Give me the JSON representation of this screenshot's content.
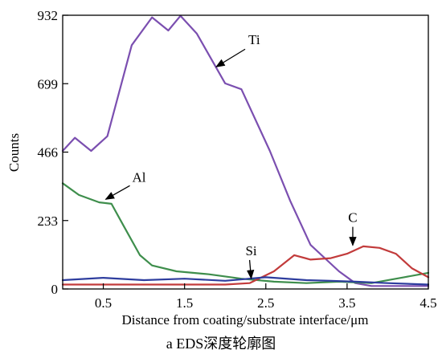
{
  "caption": "a  EDS深度轮廓图",
  "chart_data": {
    "type": "line",
    "title": "",
    "xlabel": "Distance from coating/substrate interface/μm",
    "ylabel": "Counts",
    "xlim": [
      0,
      4.5
    ],
    "ylim": [
      0,
      932
    ],
    "xticks": [
      0.5,
      1.5,
      2.5,
      3.5,
      4.5
    ],
    "xtick_labels": [
      "0.5",
      "1.5",
      "2.5",
      "3.5",
      "4.5"
    ],
    "yticks": [
      0,
      233,
      466,
      699,
      932
    ],
    "ytick_labels": [
      "0",
      "233",
      "466",
      "699",
      "932"
    ],
    "grid": false,
    "series": [
      {
        "name": "Ti",
        "color": "#7b4fb0",
        "x": [
          0,
          0.15,
          0.35,
          0.55,
          0.85,
          1.1,
          1.3,
          1.45,
          1.65,
          2.0,
          2.2,
          2.55,
          2.8,
          3.05,
          3.4,
          3.6,
          3.8,
          4.0,
          4.2,
          4.5
        ],
        "y": [
          470,
          515,
          470,
          520,
          830,
          925,
          880,
          930,
          870,
          700,
          680,
          470,
          300,
          150,
          60,
          20,
          10,
          10,
          10,
          10
        ]
      },
      {
        "name": "Al",
        "color": "#3e8e4c",
        "x": [
          0,
          0.2,
          0.45,
          0.6,
          0.75,
          0.95,
          1.1,
          1.4,
          1.8,
          2.2,
          2.6,
          3.0,
          3.4,
          3.8,
          4.2,
          4.5
        ],
        "y": [
          360,
          320,
          295,
          290,
          215,
          115,
          80,
          60,
          50,
          35,
          25,
          20,
          25,
          20,
          40,
          55
        ]
      },
      {
        "name": "C",
        "color": "#c23b3b",
        "x": [
          0,
          0.5,
          1.0,
          1.5,
          2.0,
          2.3,
          2.6,
          2.85,
          3.05,
          3.3,
          3.5,
          3.7,
          3.9,
          4.1,
          4.3,
          4.5
        ],
        "y": [
          15,
          15,
          15,
          15,
          15,
          20,
          60,
          115,
          100,
          105,
          120,
          145,
          140,
          120,
          70,
          40
        ]
      },
      {
        "name": "Si",
        "color": "#2e3d9e",
        "x": [
          0,
          0.5,
          1.0,
          1.5,
          2.0,
          2.5,
          3.0,
          3.3,
          3.6,
          4.0,
          4.5
        ],
        "y": [
          30,
          38,
          30,
          35,
          28,
          40,
          30,
          28,
          25,
          20,
          15
        ]
      }
    ],
    "annotations": [
      {
        "text": "Ti",
        "target": [
          1.83,
          740
        ]
      },
      {
        "text": "Al",
        "target": [
          0.48,
          297
        ]
      },
      {
        "text": "Si",
        "target": [
          2.32,
          22
        ]
      },
      {
        "text": "C",
        "target": [
          3.57,
          135
        ]
      }
    ]
  }
}
